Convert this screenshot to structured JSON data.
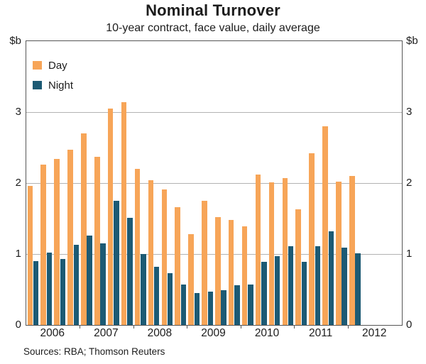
{
  "chart_data": {
    "type": "bar",
    "title": "Nominal Turnover",
    "subtitle": "10-year contract, face value, daily average",
    "unit_label": "$b",
    "ylim": [
      0,
      4
    ],
    "ytick_labels": [
      "0",
      "1",
      "2",
      "3"
    ],
    "grid": "horizontal",
    "legend_position": "top-left-inside",
    "x_year_labels": [
      "2006",
      "2007",
      "2008",
      "2009",
      "2010",
      "2011",
      "2012"
    ],
    "categories": [
      "2006 Q1",
      "2006 Q2",
      "2006 Q3",
      "2006 Q4",
      "2007 Q1",
      "2007 Q2",
      "2007 Q3",
      "2007 Q4",
      "2008 Q1",
      "2008 Q2",
      "2008 Q3",
      "2008 Q4",
      "2009 Q1",
      "2009 Q2",
      "2009 Q3",
      "2009 Q4",
      "2010 Q1",
      "2010 Q2",
      "2010 Q3",
      "2010 Q4",
      "2011 Q1",
      "2011 Q2",
      "2011 Q3",
      "2011 Q4",
      "2012 Q1"
    ],
    "series": [
      {
        "name": "Day",
        "color": "#F7A558",
        "values": [
          1.96,
          2.26,
          2.34,
          2.47,
          2.7,
          2.37,
          3.05,
          3.14,
          2.2,
          2.04,
          1.91,
          1.66,
          1.28,
          1.75,
          1.52,
          1.48,
          1.39,
          2.12,
          2.01,
          2.07,
          1.63,
          2.42,
          2.8,
          2.02,
          2.1
        ]
      },
      {
        "name": "Night",
        "color": "#1C5A74",
        "values": [
          0.9,
          1.02,
          0.93,
          1.13,
          1.26,
          1.15,
          1.75,
          1.51,
          1.0,
          0.82,
          0.73,
          0.57,
          0.45,
          0.47,
          0.49,
          0.56,
          0.57,
          0.89,
          0.97,
          1.11,
          0.89,
          1.11,
          1.32,
          1.09,
          1.01
        ]
      }
    ],
    "footer": "Sources: RBA; Thomson Reuters",
    "frame_color": "#565656",
    "gridline_color": "#b3b3b3"
  }
}
